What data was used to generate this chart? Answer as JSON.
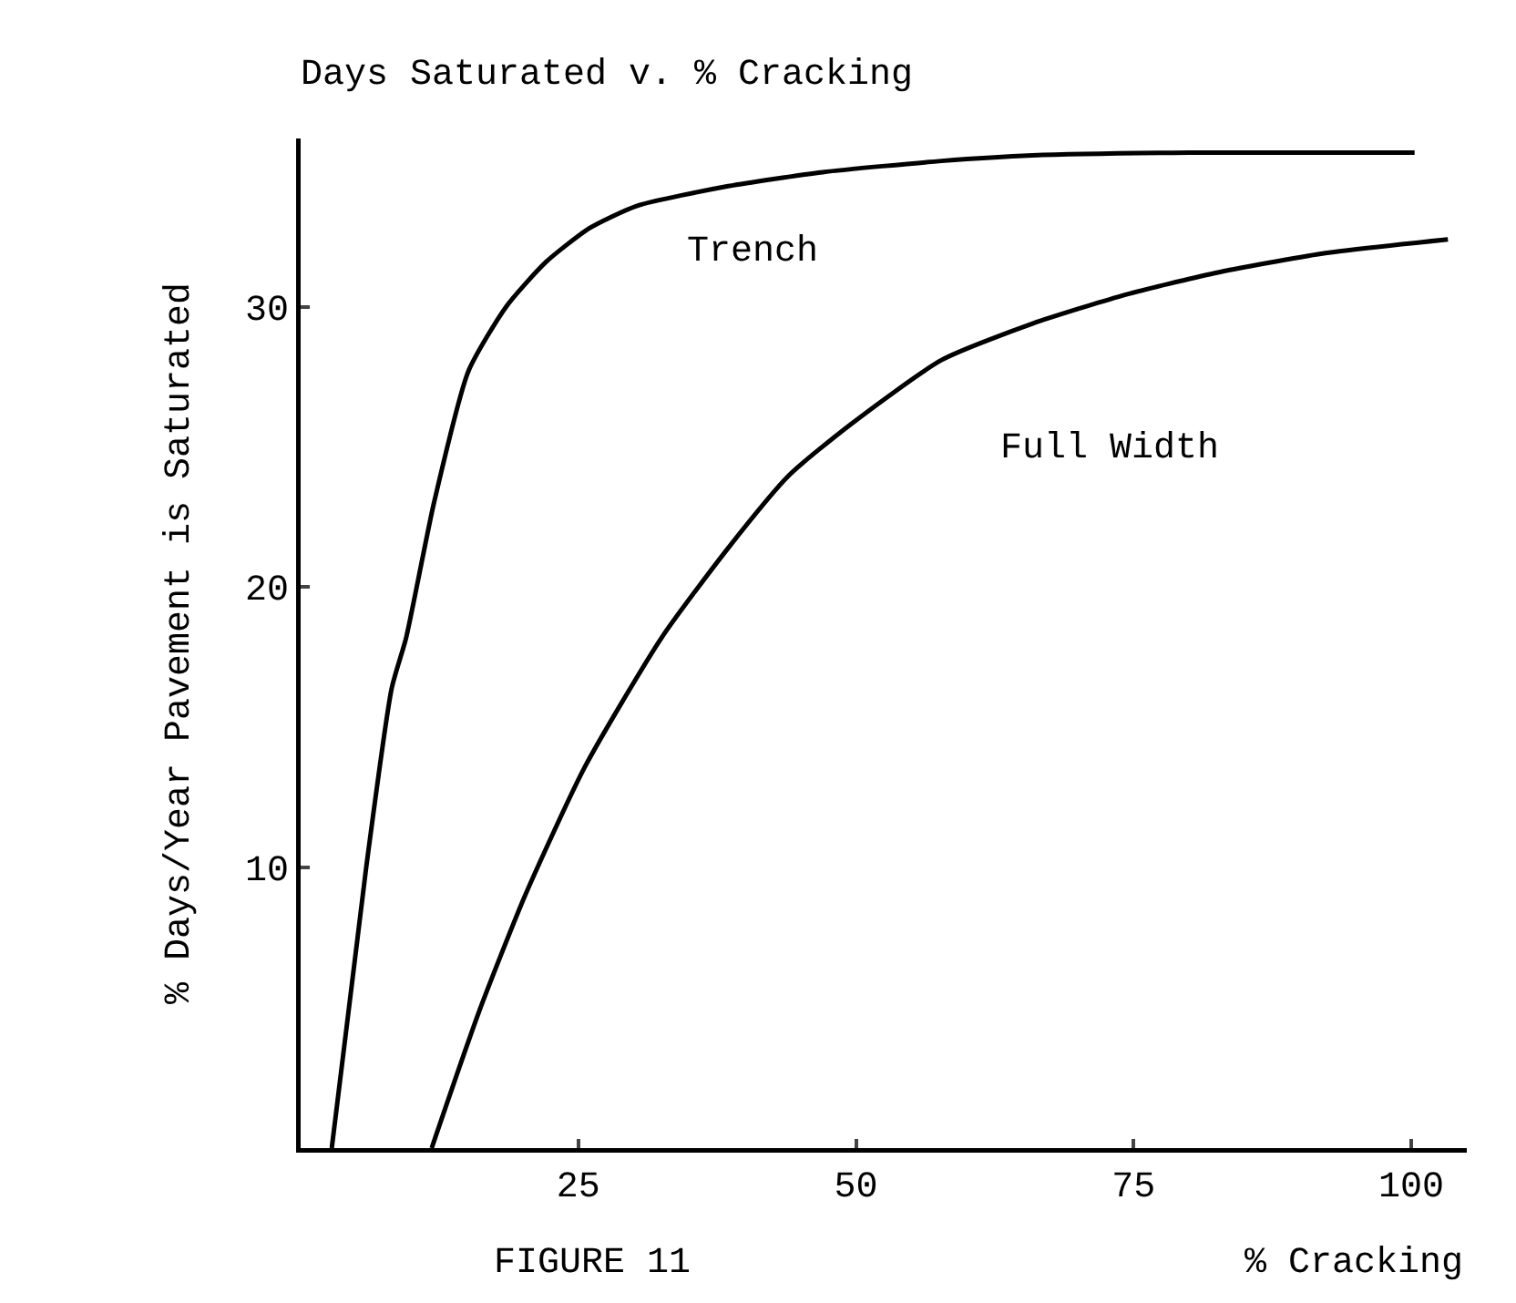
{
  "chart_data": {
    "type": "line",
    "title": "Days Saturated v. % Cracking",
    "xlabel": "% Cracking",
    "ylabel": "% Days/Year Pavement is Saturated",
    "annotations": [
      "FIGURE 11"
    ],
    "xlim": [
      0,
      105
    ],
    "ylim": [
      0,
      36
    ],
    "xticks": [
      25,
      50,
      75,
      100
    ],
    "yticks": [
      10,
      20,
      30
    ],
    "grid": false,
    "legend": false,
    "series": [
      {
        "name": "Trench",
        "color": "#000000",
        "x": [
          2.8,
          5.9,
          8.2,
          9.5,
          12,
          15.1,
          18.5,
          22.1,
          26,
          30.3,
          38.5,
          47,
          57.7,
          65.9,
          80,
          100.3
        ],
        "values": [
          0,
          10,
          16.4,
          18.2,
          23,
          27.7,
          30,
          31.6,
          32.8,
          33.6,
          34.3,
          34.8,
          35.2,
          35.4,
          35.5,
          35.5
        ]
      },
      {
        "name": "Full Width",
        "color": "#000000",
        "x": [
          11.8,
          16,
          20.2,
          25.6,
          32.5,
          38.5,
          44,
          49.5,
          57.7,
          65.9,
          74,
          82.3,
          92,
          103.3
        ],
        "values": [
          0,
          4.8,
          9,
          13.6,
          18.2,
          21.4,
          24,
          25.8,
          28.1,
          29.4,
          30.4,
          31.2,
          31.9,
          32.4
        ]
      }
    ]
  }
}
